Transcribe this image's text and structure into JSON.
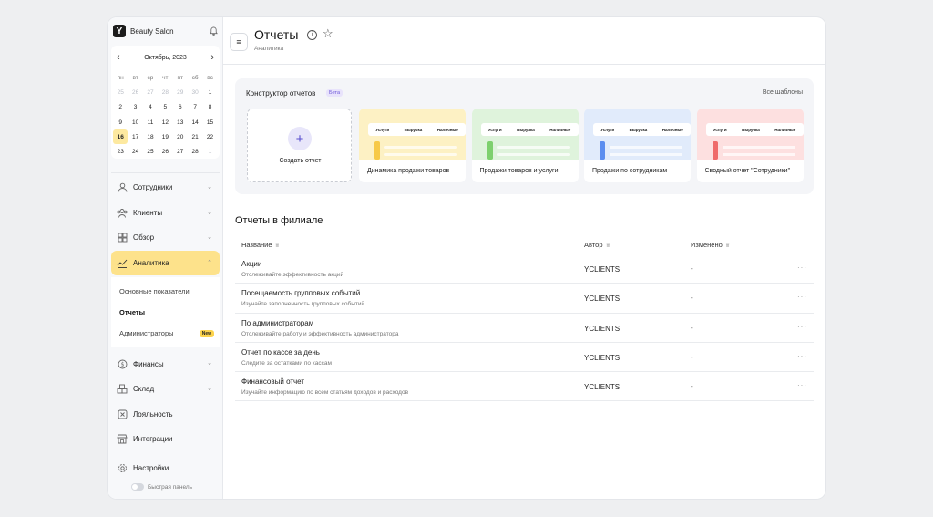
{
  "sidebar": {
    "brand": "Beauty Salon",
    "calendar": {
      "month": "Октябрь, 2023",
      "weekdays": [
        "пн",
        "вт",
        "ср",
        "чт",
        "пт",
        "сб",
        "вс"
      ],
      "days": [
        "25",
        "26",
        "27",
        "28",
        "29",
        "30",
        "1",
        "2",
        "3",
        "4",
        "5",
        "6",
        "7",
        "8",
        "9",
        "10",
        "11",
        "12",
        "13",
        "14",
        "15",
        "16",
        "17",
        "18",
        "19",
        "20",
        "21",
        "22",
        "23",
        "24",
        "25",
        "26",
        "27",
        "28",
        "1"
      ],
      "today": "16"
    },
    "menu": {
      "employees": "Сотрудники",
      "clients": "Клиенты",
      "overview": "Обзор",
      "analytics": "Аналитика",
      "analytics_sub": {
        "key_metrics": "Основные показатели",
        "reports": "Отчеты",
        "admins": "Администраторы",
        "new_badge": "New"
      },
      "finance": "Финансы",
      "warehouse": "Склад",
      "loyalty": "Лояльность",
      "integrations": "Интеграции",
      "settings": "Настройки"
    },
    "quick_panel": "Быстрая панель"
  },
  "header": {
    "title": "Отчеты",
    "subtitle": "Аналитика"
  },
  "builder": {
    "title": "Конструктор отчетов",
    "beta": "Бета",
    "all_templates": "Все шаблоны",
    "create": "Создать отчет",
    "template_columns": [
      "Услуги",
      "Выручка",
      "Наличные"
    ],
    "templates": [
      {
        "name": "Динамика продажи товаров",
        "color": "#fdf1c4",
        "bar": "#f7c948"
      },
      {
        "name": "Продажи товаров и услуги",
        "color": "#dff3dc",
        "bar": "#7ed06e"
      },
      {
        "name": "Продажи по сотрудникам",
        "color": "#e1ebfb",
        "bar": "#5b8def"
      },
      {
        "name": "Сводный отчет \"Сотрудники\"",
        "color": "#fde0e0",
        "bar": "#ef6b6b"
      }
    ]
  },
  "reports": {
    "title": "Отчеты в филиале",
    "columns": {
      "name": "Название",
      "author": "Автор",
      "modified": "Изменено"
    },
    "rows": [
      {
        "title": "Акции",
        "desc": "Отслеживайте эффективность акций",
        "author": "YCLIENTS",
        "modified": "-"
      },
      {
        "title": "Посещаемость групповых событий",
        "desc": "Изучайте заполненность групповых событий",
        "author": "YCLIENTS",
        "modified": "-"
      },
      {
        "title": "По администраторам",
        "desc": "Отслеживайте работу и эффективность администратора",
        "author": "YCLIENTS",
        "modified": "-"
      },
      {
        "title": "Отчет по кассе за день",
        "desc": "Следите за остатками по кассам",
        "author": "YCLIENTS",
        "modified": "-"
      },
      {
        "title": "Финансовый отчет",
        "desc": "Изучайте информацию по всем статьям доходов и расходов",
        "author": "YCLIENTS",
        "modified": "-"
      }
    ]
  }
}
